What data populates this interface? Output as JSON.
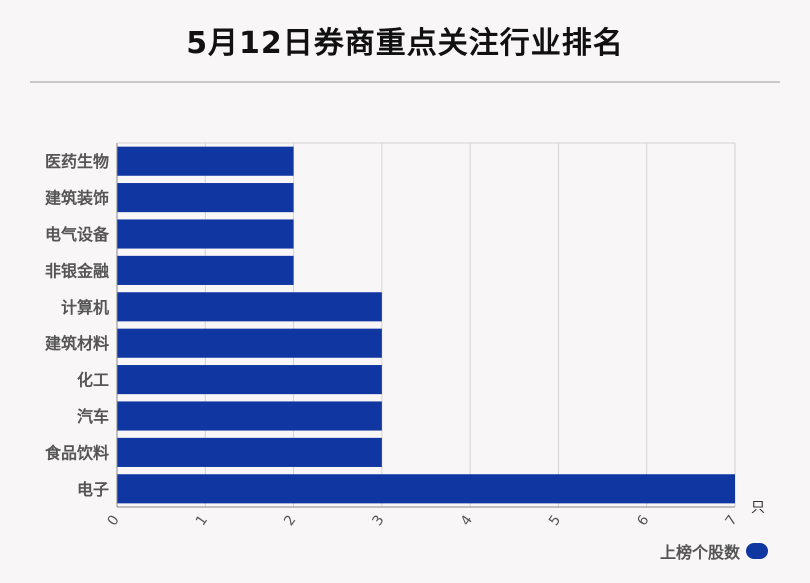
{
  "title": "5月12日券商重点关注行业排名",
  "chart_data": {
    "type": "bar",
    "orientation": "horizontal",
    "categories": [
      "医药生物",
      "建筑装饰",
      "电气设备",
      "非银金融",
      "计算机",
      "建筑材料",
      "化工",
      "汽车",
      "食品饮料",
      "电子"
    ],
    "series": [
      {
        "name": "上榜个股数",
        "values": [
          2,
          2,
          2,
          2,
          3,
          3,
          3,
          3,
          3,
          7
        ],
        "color": "#1036a1"
      }
    ],
    "x_ticks": [
      "0",
      "1",
      "2",
      "3",
      "4",
      "5",
      "6",
      "7"
    ],
    "xlim": [
      0,
      7
    ],
    "unit_label": "只",
    "grid": true,
    "legend_position": "bottom-right"
  }
}
